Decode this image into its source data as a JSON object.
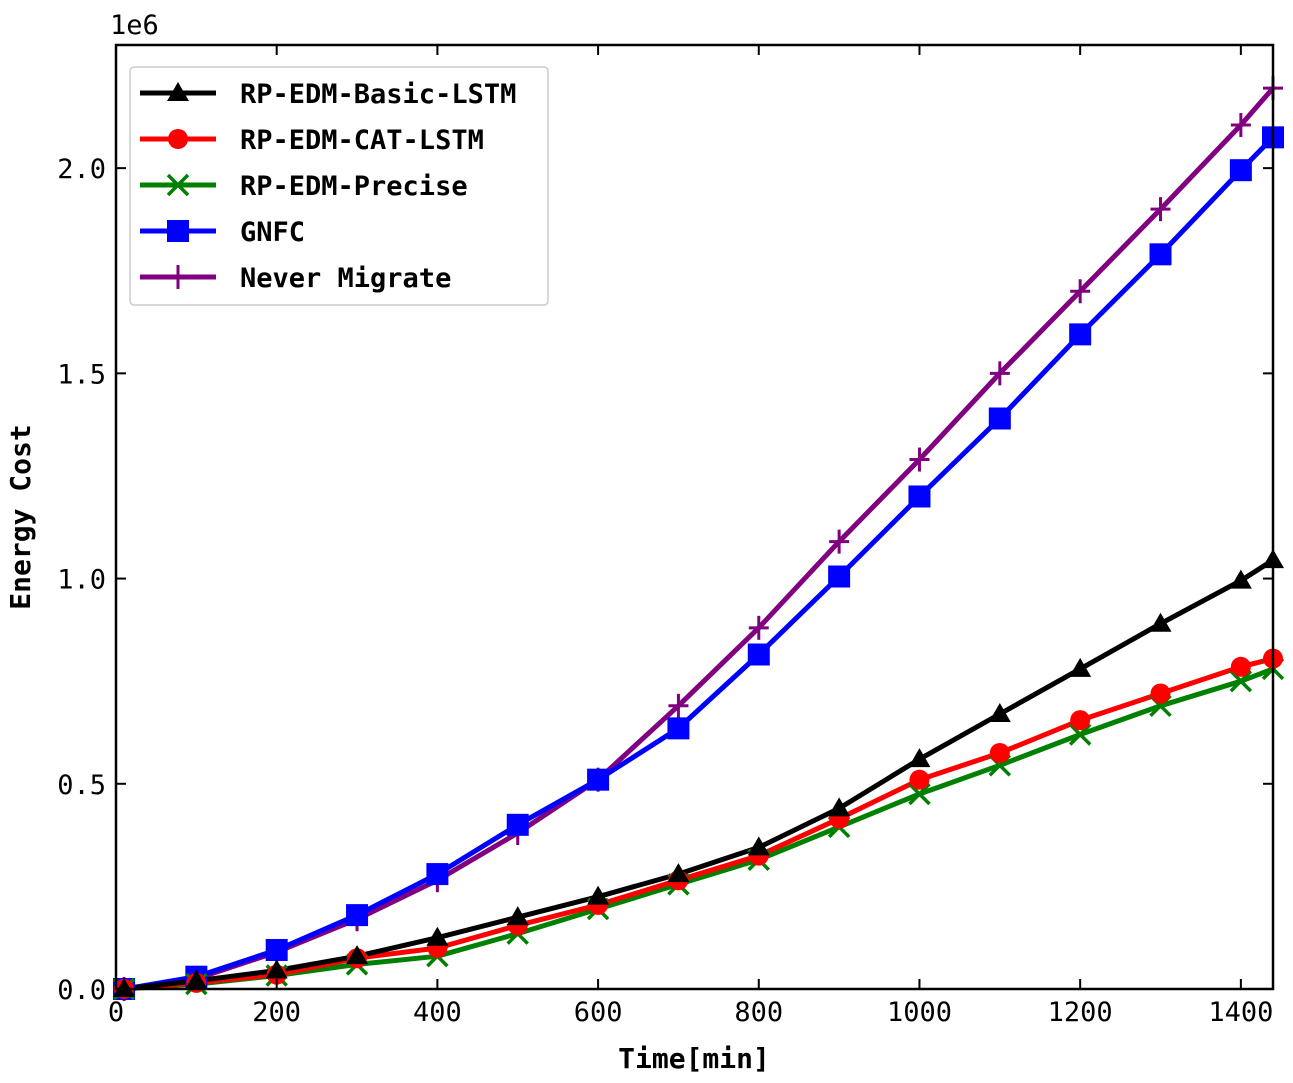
{
  "chart_data": {
    "type": "line",
    "title": "",
    "xlabel": "Time[min]",
    "ylabel": "Energy Cost",
    "y_scale_label": "1e6",
    "xlim": [
      0,
      1440
    ],
    "ylim": [
      0,
      2300000
    ],
    "xticks": [
      0,
      200,
      400,
      600,
      800,
      1000,
      1200,
      1400
    ],
    "xtick_labels": [
      "0",
      "200",
      "400",
      "600",
      "800",
      "1000",
      "1200",
      "1400"
    ],
    "yticks": [
      0,
      500000,
      1000000,
      1500000,
      2000000
    ],
    "ytick_labels": [
      "0.0",
      "0.5",
      "1.0",
      "1.5",
      "2.0"
    ],
    "grid": false,
    "legend_position": "top-left",
    "x": [
      10,
      100,
      200,
      300,
      400,
      500,
      600,
      700,
      800,
      900,
      1000,
      1100,
      1200,
      1300,
      1400,
      1440
    ],
    "series": [
      {
        "name": "RP-EDM-Basic-LSTM",
        "color": "#000000",
        "marker": "triangle",
        "values": [
          0,
          20000,
          45000,
          80000,
          125000,
          175000,
          225000,
          280000,
          345000,
          440000,
          560000,
          670000,
          780000,
          890000,
          995000,
          1045000
        ]
      },
      {
        "name": "RP-EDM-CAT-LSTM",
        "color": "#ff0000",
        "marker": "circle",
        "values": [
          0,
          15000,
          35000,
          75000,
          100000,
          155000,
          205000,
          265000,
          325000,
          415000,
          510000,
          575000,
          655000,
          720000,
          785000,
          805000
        ]
      },
      {
        "name": "RP-EDM-Precise",
        "color": "#008000",
        "marker": "x",
        "values": [
          0,
          12000,
          33000,
          60000,
          80000,
          135000,
          195000,
          255000,
          315000,
          395000,
          475000,
          545000,
          620000,
          690000,
          750000,
          780000
        ]
      },
      {
        "name": "GNFC",
        "color": "#0000ff",
        "marker": "square",
        "values": [
          0,
          30000,
          95000,
          180000,
          280000,
          400000,
          510000,
          635000,
          815000,
          1005000,
          1200000,
          1390000,
          1595000,
          1790000,
          1995000,
          2075000
        ]
      },
      {
        "name": "Never Migrate",
        "color": "#800080",
        "marker": "plus",
        "values": [
          0,
          25000,
          90000,
          170000,
          265000,
          380000,
          510000,
          690000,
          880000,
          1090000,
          1290000,
          1500000,
          1700000,
          1900000,
          2105000,
          2195000
        ]
      }
    ]
  }
}
